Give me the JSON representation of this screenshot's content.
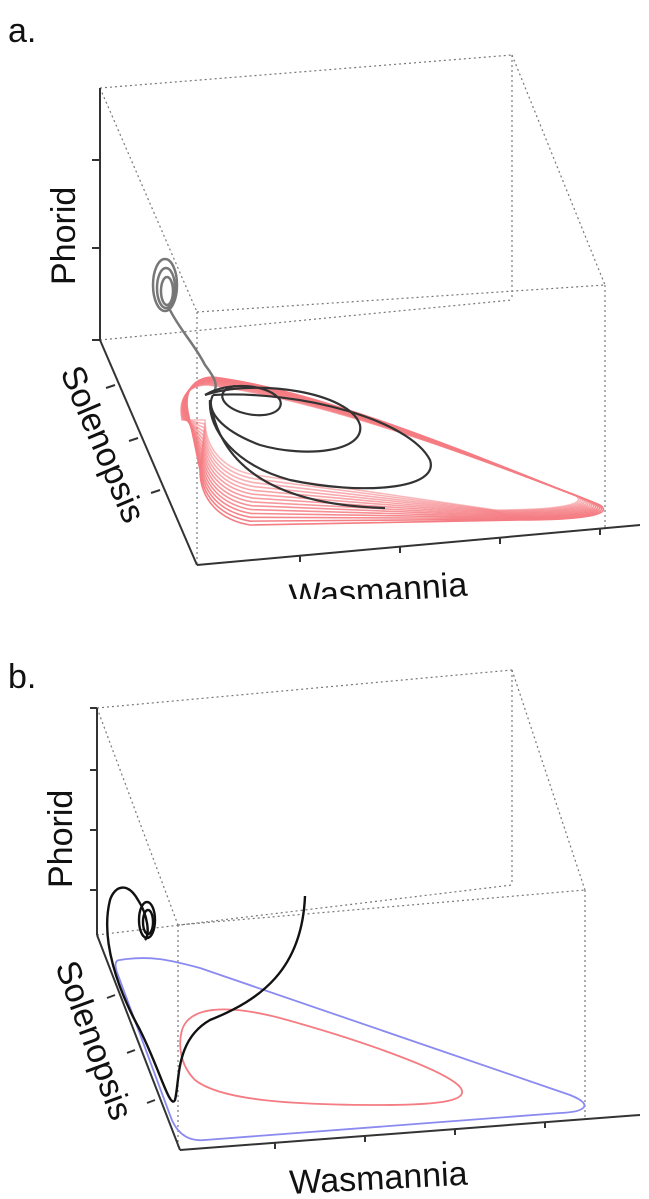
{
  "chart_data": [
    {
      "panel_label": "a.",
      "type": "line",
      "xlabel": "Wasmannia",
      "ylabel": "Solenopsis",
      "zlabel": "Phorid",
      "grid": false,
      "box": "dotted bounding box",
      "series_colors": {
        "primary": "#f47c82",
        "secondary": "#333333"
      },
      "red_trajectory": {
        "description_code": "red-limit-cycle-loops",
        "count": 14
      },
      "black_trajectory": {
        "description_code": "black-converging-spiral"
      }
    },
    {
      "panel_label": "b.",
      "type": "line",
      "xlabel": "Wasmannia",
      "ylabel": "Solenopsis",
      "zlabel": "Phorid",
      "grid": false,
      "box": "dotted bounding box",
      "series_colors": {
        "primary": "#8a8af0",
        "secondary": "#f47c82",
        "tertiary": "#111111"
      }
    }
  ]
}
